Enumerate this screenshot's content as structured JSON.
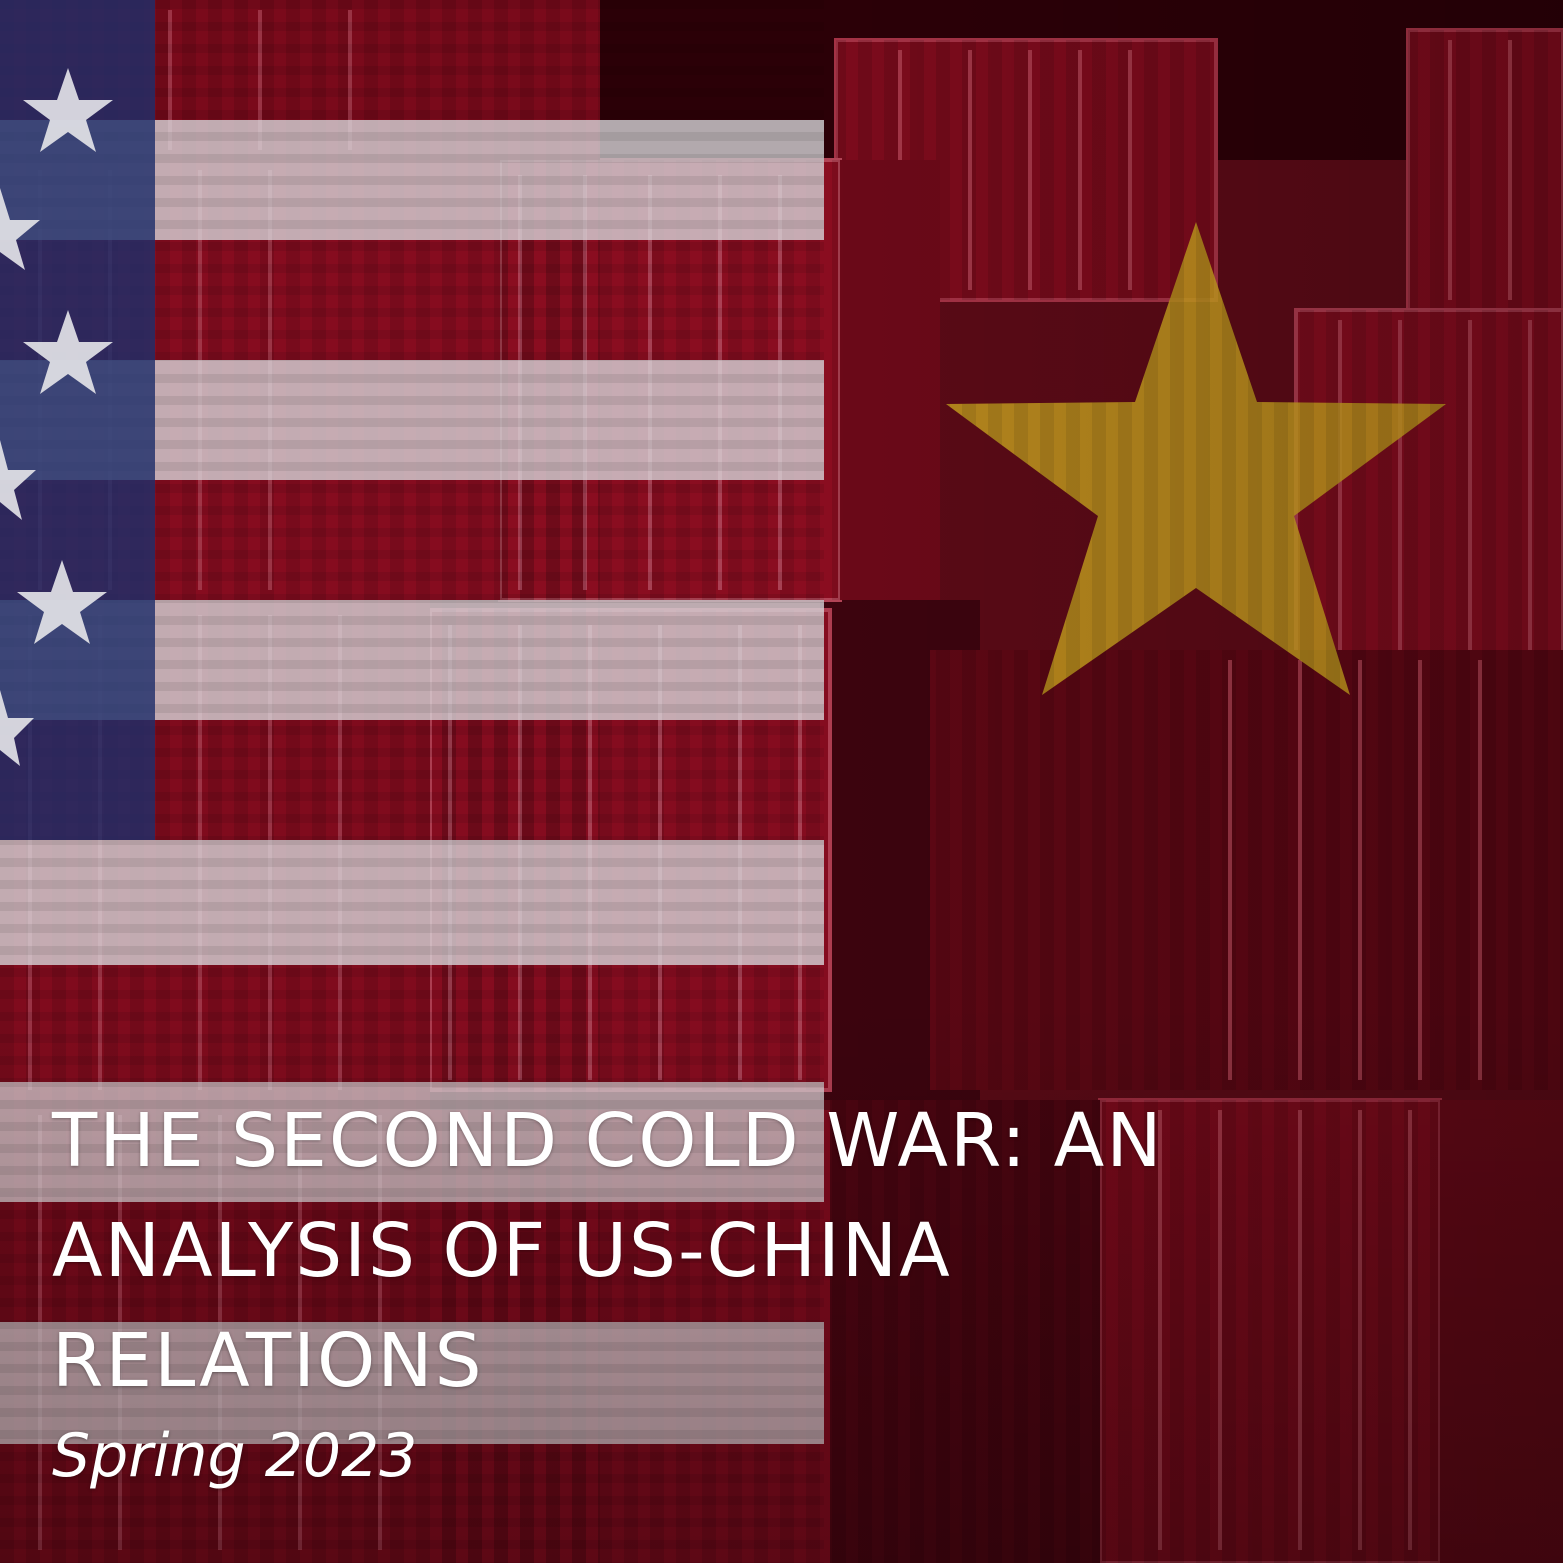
{
  "poster": {
    "title_lines": [
      "THE SECOND COLD WAR: AN",
      "ANALYSIS OF US-CHINA",
      "RELATIONS"
    ],
    "subtitle": "Spring 2023"
  },
  "artwork": {
    "background_icon": "shipping-containers-image",
    "left_flag_icon": "us-flag-overlay",
    "right_flag_icon": "china-flag-overlay",
    "colors": {
      "container_red": "#8e0b1f",
      "dark_red": "#4a0612",
      "stripe_white": "#c8c8cc",
      "canton_blue": "#2a3566",
      "star_gold": "#c9a21e",
      "text": "#ffffff"
    }
  }
}
